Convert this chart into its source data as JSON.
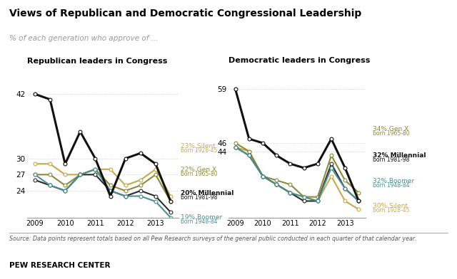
{
  "title": "Views of Republican and Democratic Congressional Leadership",
  "subtitle": "% of each generation who approve of ...",
  "source": "Source: Data points represent totals based on all Pew Research surveys of the general public conducted in each quarter of that calendar year.",
  "branding": "PEW RESEARCH CENTER",
  "left_title": "Republican leaders in Congress",
  "right_title": "Democratic leaders in Congress",
  "x_labels": [
    "2009",
    "2010",
    "2011",
    "2012",
    "2013"
  ],
  "rep_x": [
    0,
    1,
    2,
    3,
    4,
    5,
    6,
    7,
    8,
    9
  ],
  "rep_silent": [
    29,
    29,
    27,
    27,
    28,
    28,
    25,
    26,
    28,
    23
  ],
  "rep_genx": [
    27,
    27,
    25,
    27,
    28,
    25,
    24,
    25,
    27,
    22
  ],
  "rep_millennial": [
    26,
    25,
    24,
    27,
    27,
    24,
    23,
    24,
    23,
    20
  ],
  "rep_boomer": [
    27,
    25,
    24,
    27,
    28,
    24,
    23,
    23,
    22,
    19
  ],
  "rep_black": [
    42,
    41,
    29,
    35,
    30,
    23,
    30,
    31,
    29,
    22
  ],
  "dem_x": [
    0,
    1,
    2,
    3,
    4,
    5,
    6,
    7,
    8,
    9
  ],
  "dem_silent": [
    45,
    44,
    38,
    36,
    34,
    33,
    32,
    38,
    32,
    30
  ],
  "dem_genx": [
    46,
    44,
    38,
    37,
    36,
    33,
    33,
    43,
    37,
    34
  ],
  "dem_millennial": [
    45,
    43,
    38,
    36,
    34,
    32,
    32,
    41,
    35,
    32
  ],
  "dem_boomer": [
    45,
    43,
    38,
    36,
    34,
    33,
    32,
    40,
    35,
    32
  ],
  "dem_black": [
    59,
    47,
    46,
    43,
    41,
    40,
    41,
    47,
    40,
    32
  ],
  "color_silent": "#c8a84b",
  "color_genx": "#8b8b3a",
  "color_millennial": "#2b2b2b",
  "color_boomer": "#4a9090",
  "color_black": "#111111",
  "left_yticks": [
    24,
    27,
    30,
    42
  ],
  "right_yticks": [
    44,
    46,
    59
  ],
  "rep_legend": [
    {
      "pct": "23% Silent",
      "sub": "born 1928-45",
      "color": "#c8a84b",
      "bold": false
    },
    {
      "pct": "22% Gen X",
      "sub": "born 1965-80",
      "color": "#8b8b3a",
      "bold": false
    },
    {
      "pct": "20% Millennial",
      "sub": "born 1981-98",
      "color": "#111111",
      "bold": true
    },
    {
      "pct": "19% Boomer",
      "sub": "born 1948-84",
      "color": "#4a9090",
      "bold": false
    }
  ],
  "dem_legend": [
    {
      "pct": "34% Gen X",
      "sub": "born 1965-80",
      "color": "#8b8b3a",
      "bold": false
    },
    {
      "pct": "32% Millennial",
      "sub": "born 1981-98",
      "color": "#111111",
      "bold": true
    },
    {
      "pct": "32% Boomer",
      "sub": "born 1948-84",
      "color": "#4a9090",
      "bold": false
    },
    {
      "pct": "30% Silent",
      "sub": "born 1928-45",
      "color": "#c8a84b",
      "bold": false
    }
  ]
}
